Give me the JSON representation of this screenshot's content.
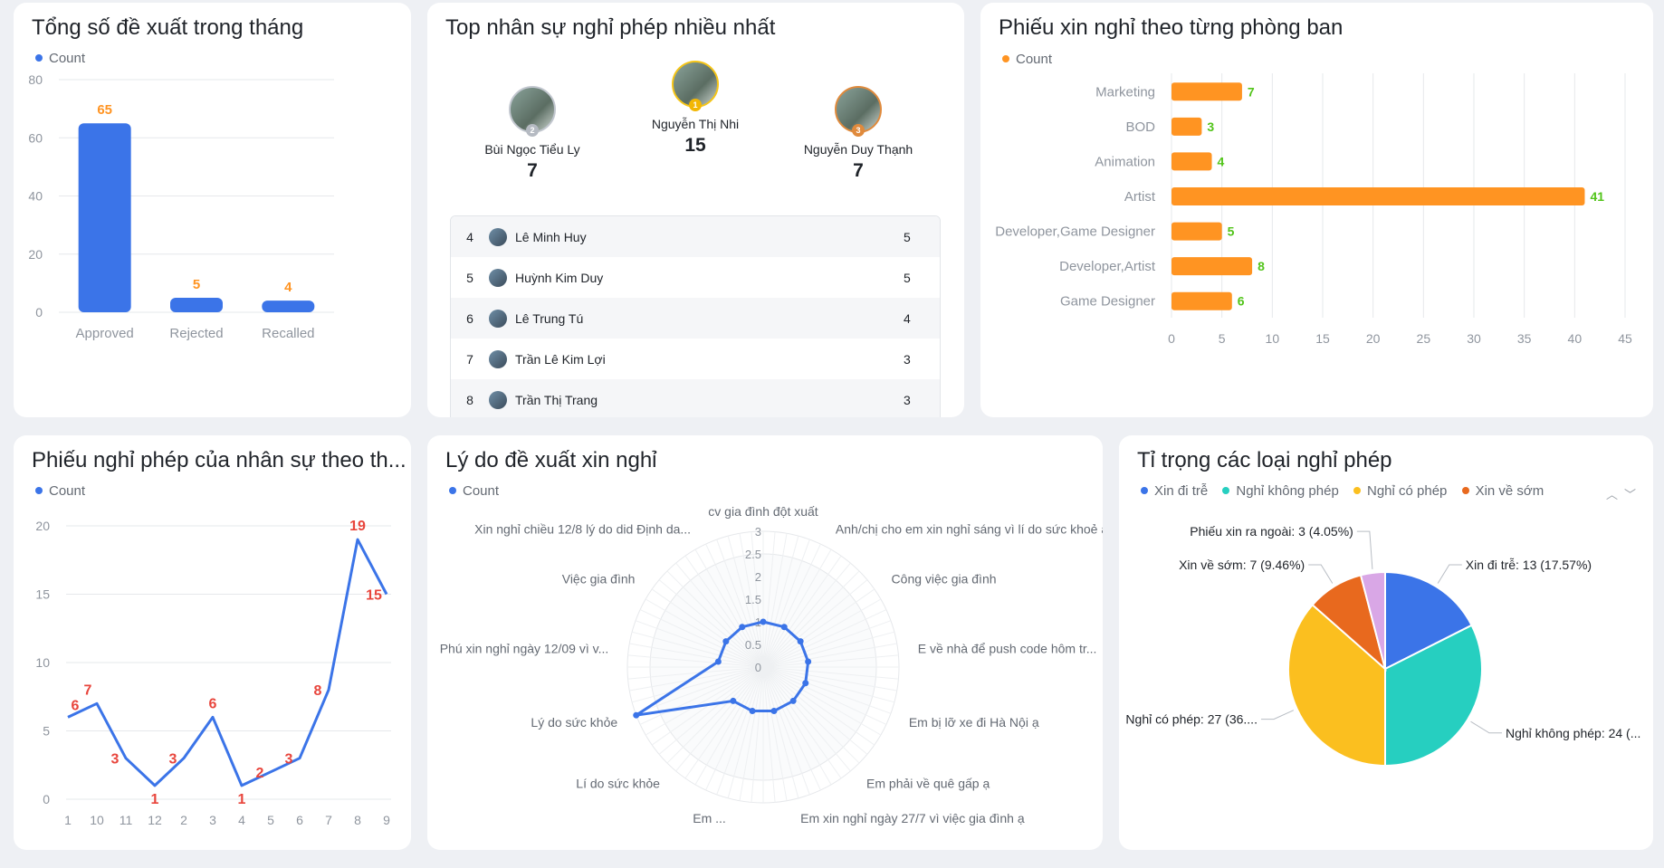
{
  "cards": {
    "monthly_total": {
      "title": "Tổng số đề xuất trong tháng",
      "legend": "Count"
    },
    "top_staff": {
      "title": "Top nhân sự nghỉ phép nhiều nhất"
    },
    "by_department": {
      "title": "Phiếu xin nghỉ theo từng phòng ban",
      "legend": "Count"
    },
    "by_month": {
      "title": "Phiếu nghỉ phép của nhân sự theo th...",
      "legend": "Count"
    },
    "reasons": {
      "title": "Lý do đề xuất xin nghỉ",
      "legend": "Count"
    },
    "leave_types": {
      "title": "Tỉ trọng các loại nghỉ phép"
    }
  },
  "podium": [
    {
      "rank": "2",
      "name": "Bùi Ngọc Tiểu Ly",
      "value": "7"
    },
    {
      "rank": "1",
      "name": "Nguyễn Thị Nhi",
      "value": "15"
    },
    {
      "rank": "3",
      "name": "Nguyễn Duy Thạnh",
      "value": "7"
    }
  ],
  "ranking": [
    {
      "rank": "4",
      "name": "Lê Minh Huy",
      "value": "5"
    },
    {
      "rank": "5",
      "name": "Huỳnh Kim Duy",
      "value": "5"
    },
    {
      "rank": "6",
      "name": "Lê Trung Tú",
      "value": "4"
    },
    {
      "rank": "7",
      "name": "Trần Lê Kim Lợi",
      "value": "3"
    },
    {
      "rank": "8",
      "name": "Trần Thị Trang",
      "value": "3"
    }
  ],
  "colors": {
    "blue": "#3b74e8",
    "orange": "#ff9422",
    "green": "#52c41a",
    "red": "#e8453c",
    "teal": "#26cfc0",
    "yellow": "#fbbf1f",
    "deep_orange": "#e8691e",
    "lilac": "#d9a7e6"
  },
  "chart_data": [
    {
      "type": "bar",
      "categories": [
        "Approved",
        "Rejected",
        "Recalled"
      ],
      "series": [
        {
          "name": "Count",
          "values": [
            65,
            5,
            4
          ]
        }
      ],
      "yticks": [
        "0",
        "20",
        "40",
        "60",
        "80"
      ],
      "ylim": [
        0,
        80
      ]
    },
    {
      "type": "bar",
      "orientation": "horizontal",
      "categories": [
        "Marketing",
        "BOD",
        "Animation",
        "Artist",
        "Developer,Game Designer",
        "Developer,Artist",
        "Game Designer"
      ],
      "series": [
        {
          "name": "Count",
          "values": [
            7,
            3,
            4,
            41,
            5,
            8,
            6
          ]
        }
      ],
      "xticks": [
        "0",
        "5",
        "10",
        "15",
        "20",
        "25",
        "30",
        "35",
        "40",
        "45"
      ],
      "xlim": [
        0,
        45
      ]
    },
    {
      "type": "line",
      "x": [
        "1",
        "10",
        "11",
        "12",
        "2",
        "3",
        "4",
        "5",
        "6",
        "7",
        "8",
        "9"
      ],
      "series": [
        {
          "name": "Count",
          "values": [
            6,
            7,
            3,
            1,
            3,
            6,
            1,
            2,
            3,
            8,
            19,
            15
          ]
        }
      ],
      "yticks": [
        "0",
        "5",
        "10",
        "15",
        "20"
      ],
      "ylim": [
        0,
        20
      ]
    },
    {
      "type": "radar",
      "categories": [
        "cv gia đình đột xuất",
        "Anh/chị cho em xin nghỉ sáng vì lí do sức khoẻ ạ",
        "Công việc gia đình",
        "E về nhà để push code hôm tr...",
        "Em bị lỡ xe đi Hà Nội ạ",
        "Em phải về quê gấp ạ",
        "Em xin nghỉ ngày 27/7 vì việc gia đình ạ",
        "Em ...",
        "Lí do sức khỏe",
        "Lý do sức khỏe",
        "Phú xin nghỉ ngày 12/09 vì v...",
        "Việc gia đình",
        "Xin nghỉ chiều 12/8 lý do did Định da..."
      ],
      "series": [
        {
          "name": "Count",
          "values": [
            1,
            1,
            1,
            1,
            1,
            1,
            1,
            1,
            1,
            3,
            1,
            1,
            1
          ]
        }
      ],
      "ticks": [
        "0",
        "0.5",
        "1",
        "1.5",
        "2",
        "2.5",
        "3"
      ],
      "rlim": [
        0,
        3
      ]
    },
    {
      "type": "pie",
      "legend": [
        "Xin đi trễ",
        "Nghỉ không phép",
        "Nghỉ có phép",
        "Xin về sớm"
      ],
      "slices": [
        {
          "name": "Xin đi trễ",
          "value": 13,
          "label": "Xin đi trễ: 13 (17.57%)"
        },
        {
          "name": "Nghỉ không phép",
          "value": 24,
          "label": "Nghỉ không phép: 24 (..."
        },
        {
          "name": "Nghỉ có phép",
          "value": 27,
          "label": "Nghỉ có phép: 27 (36...."
        },
        {
          "name": "Xin về sớm",
          "value": 7,
          "label": "Xin về sớm: 7 (9.46%)"
        },
        {
          "name": "Phiếu xin ra ngoài",
          "value": 3,
          "label": "Phiếu xin ra ngoài: 3 (4.05%)"
        }
      ]
    }
  ]
}
